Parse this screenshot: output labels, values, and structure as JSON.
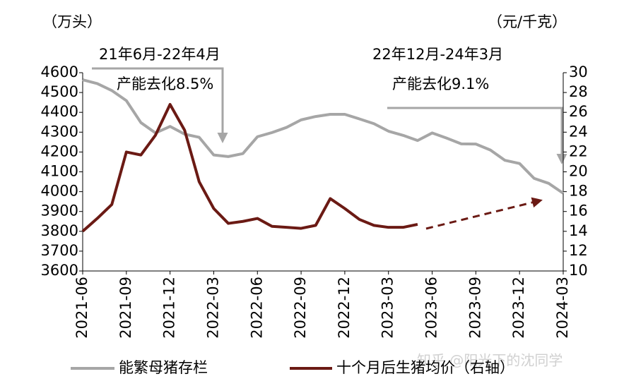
{
  "chart_data": {
    "type": "line",
    "y_label": "（万头）",
    "y2_label": "（元/千克）",
    "annotations": [
      "21年6月-22年4月",
      "产能去化8.5%",
      "22年12月-24年3月",
      "产能去化9.1%",
      "知乎 @阳光下的沈同学"
    ],
    "categories": [
      "2021-06",
      null,
      null,
      "2021-09",
      null,
      null,
      "2021-12",
      null,
      null,
      "2022-03",
      null,
      null,
      "2022-06",
      null,
      null,
      "2022-09",
      null,
      null,
      "2022-12",
      null,
      null,
      "2023-03",
      null,
      null,
      "2023-06",
      null,
      null,
      "2023-09",
      null,
      null,
      "2023-12",
      null,
      null,
      "2024-03"
    ],
    "series": [
      {
        "name": "能繁母猪存栏",
        "color": "#a6a6a6",
        "values": [
          4564,
          4545,
          4510,
          4459,
          4348,
          4296,
          4329,
          4290,
          4274,
          4185,
          4177,
          4192,
          4277,
          4298,
          4324,
          4362,
          4379,
          4390,
          4390,
          4367,
          4343,
          4305,
          4284,
          4258,
          4296,
          4270,
          4241,
          4240,
          4210,
          4158,
          4142,
          4067,
          4042,
          3992
        ]
      },
      {
        "name": "十个月后生猪均价（右轴）",
        "color": "#6b1a14",
        "axis": "y2",
        "values": [
          14.0,
          15.3,
          16.7,
          22.0,
          21.7,
          23.7,
          26.8,
          24.2,
          19.0,
          16.3,
          14.8,
          15.0,
          15.3,
          14.5,
          14.4,
          14.3,
          14.6,
          17.3,
          16.3,
          15.2,
          14.6,
          14.4,
          14.4,
          14.7,
          null,
          null,
          null,
          null,
          null,
          null,
          null,
          null,
          null,
          null
        ]
      }
    ],
    "ylim": [
      3600,
      4600
    ],
    "yticks": [
      3600,
      3700,
      3800,
      3900,
      4000,
      4100,
      4200,
      4300,
      4400,
      4500,
      4600
    ],
    "y2lim": [
      10,
      30
    ],
    "y2ticks": [
      10,
      12,
      14,
      16,
      18,
      20,
      22,
      24,
      26,
      28,
      30
    ]
  }
}
